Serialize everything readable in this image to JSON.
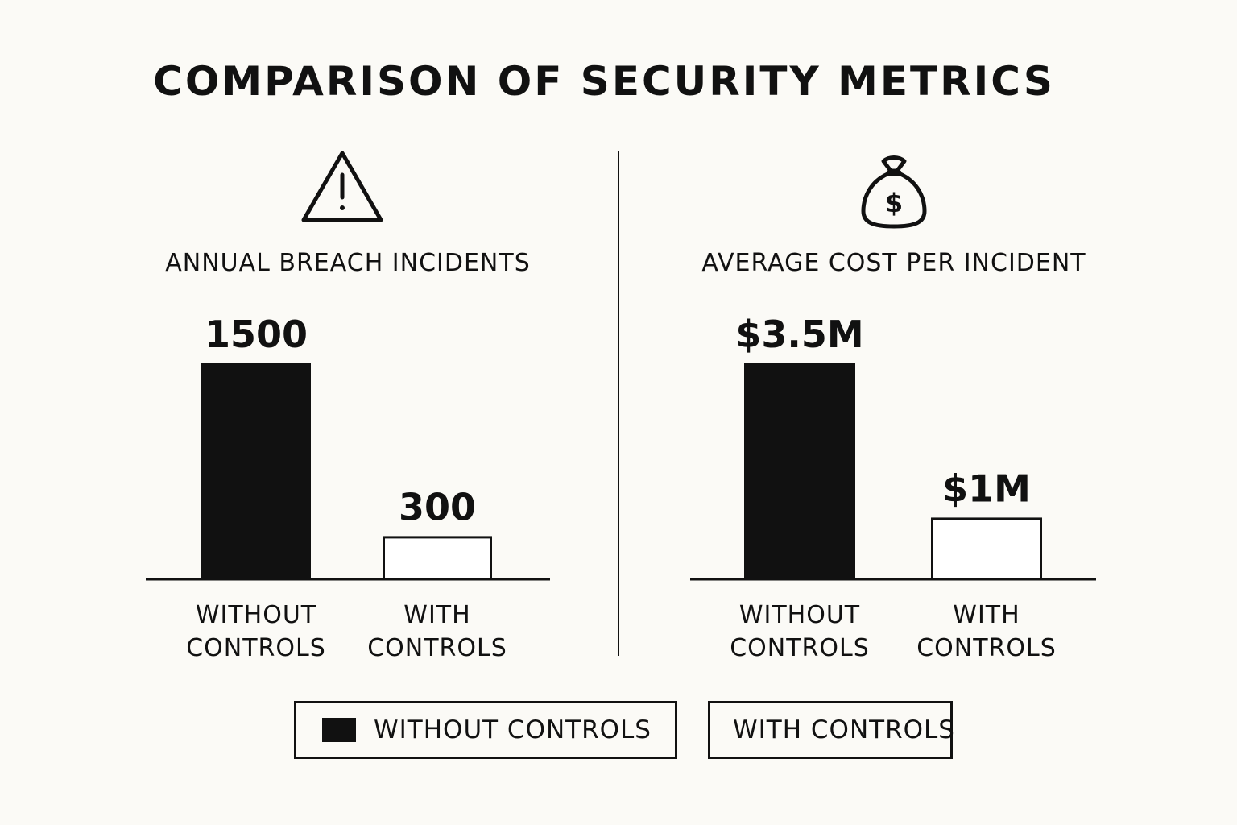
{
  "title": "COMPARISON OF SECURITY METRICS",
  "colors": {
    "background": "#fbfaf6",
    "without_controls": "#111111",
    "with_controls": "#ffffff",
    "ink": "#111111"
  },
  "legend": {
    "without_label": "WITHOUT CONTROLS",
    "with_label": "WITH CONTROLS",
    "placement": "bottom-center"
  },
  "chart_data": [
    {
      "type": "bar",
      "title": "ANNUAL BREACH INCIDENTS",
      "icon": "warning-triangle-icon",
      "categories": [
        "WITHOUT CONTROLS",
        "WITH CONTROLS"
      ],
      "category_lines": [
        [
          "WITHOUT",
          "CONTROLS"
        ],
        [
          "WITH",
          "CONTROLS"
        ]
      ],
      "values": [
        1500,
        300
      ],
      "value_labels": [
        "1500",
        "300"
      ],
      "ylim": [
        0,
        1500
      ],
      "grid": false
    },
    {
      "type": "bar",
      "title": "AVERAGE COST PER INCIDENT",
      "icon": "money-bag-icon",
      "categories": [
        "WITHOUT CONTROLS",
        "WITH CONTROLS"
      ],
      "category_lines": [
        [
          "WITHOUT",
          "CONTROLS"
        ],
        [
          "WITH",
          "CONTROLS"
        ]
      ],
      "values": [
        3.5,
        1
      ],
      "value_labels": [
        "$3.5M",
        "$1M"
      ],
      "ylim": [
        0,
        3.5
      ],
      "grid": false
    }
  ]
}
